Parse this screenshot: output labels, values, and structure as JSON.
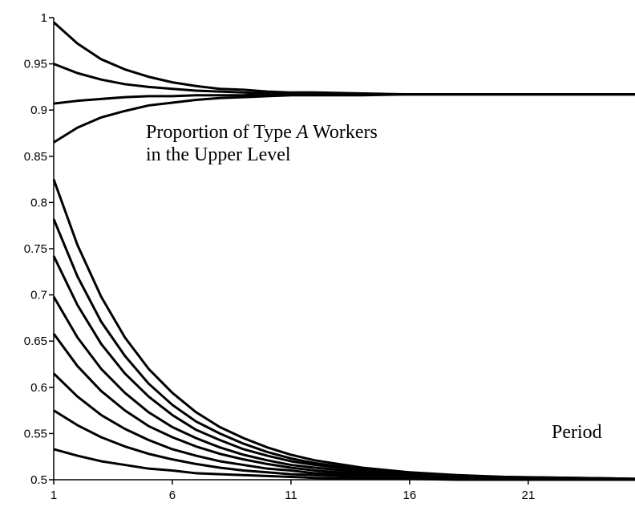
{
  "chart_data": {
    "type": "line",
    "annotation": [
      "Proportion of Type ",
      "A",
      " Workers",
      "in the Upper Level"
    ],
    "xlabel": "Period",
    "x": [
      1,
      2,
      3,
      4,
      5,
      6,
      7,
      8,
      9,
      10,
      11,
      12,
      14,
      16,
      18,
      20,
      25.5
    ],
    "xlim": [
      1,
      25.5
    ],
    "xticks": [
      1,
      6,
      11,
      16,
      21
    ],
    "ylim": [
      0.5,
      1
    ],
    "yticks": [
      0.5,
      0.55,
      0.6,
      0.65,
      0.7,
      0.75,
      0.8,
      0.85,
      0.9,
      0.95,
      1
    ],
    "series": [
      {
        "color": "#000000",
        "values": [
          0.995,
          0.972,
          0.955,
          0.944,
          0.936,
          0.93,
          0.926,
          0.923,
          0.922,
          0.92,
          0.919,
          0.919,
          0.918,
          0.917,
          0.917,
          0.917,
          0.917
        ]
      },
      {
        "color": "#000000",
        "values": [
          0.95,
          0.94,
          0.933,
          0.928,
          0.925,
          0.923,
          0.921,
          0.92,
          0.919,
          0.918,
          0.918,
          0.918,
          0.917,
          0.917,
          0.917,
          0.917,
          0.917
        ]
      },
      {
        "color": "#000000",
        "values": [
          0.907,
          0.91,
          0.912,
          0.914,
          0.915,
          0.915,
          0.916,
          0.916,
          0.916,
          0.917,
          0.917,
          0.917,
          0.917,
          0.917,
          0.917,
          0.917,
          0.917
        ]
      },
      {
        "color": "#000000",
        "values": [
          0.865,
          0.881,
          0.892,
          0.899,
          0.905,
          0.908,
          0.911,
          0.913,
          0.914,
          0.915,
          0.916,
          0.916,
          0.916,
          0.917,
          0.917,
          0.917,
          0.917
        ]
      },
      {
        "color": "#000000",
        "values": [
          0.825,
          0.754,
          0.698,
          0.654,
          0.62,
          0.594,
          0.573,
          0.557,
          0.545,
          0.535,
          0.527,
          0.521,
          0.513,
          0.508,
          0.505,
          0.503,
          0.501
        ]
      },
      {
        "color": "#000000",
        "values": [
          0.782,
          0.72,
          0.671,
          0.634,
          0.604,
          0.581,
          0.563,
          0.55,
          0.539,
          0.53,
          0.523,
          0.518,
          0.511,
          0.507,
          0.504,
          0.503,
          0.501
        ]
      },
      {
        "color": "#000000",
        "values": [
          0.742,
          0.689,
          0.647,
          0.615,
          0.59,
          0.57,
          0.554,
          0.543,
          0.533,
          0.526,
          0.52,
          0.516,
          0.51,
          0.506,
          0.504,
          0.502,
          0.5
        ]
      },
      {
        "color": "#000000",
        "values": [
          0.698,
          0.654,
          0.62,
          0.594,
          0.573,
          0.557,
          0.545,
          0.535,
          0.527,
          0.521,
          0.516,
          0.513,
          0.508,
          0.505,
          0.503,
          0.502,
          0.5
        ]
      },
      {
        "color": "#000000",
        "values": [
          0.658,
          0.623,
          0.596,
          0.575,
          0.558,
          0.546,
          0.536,
          0.528,
          0.522,
          0.517,
          0.513,
          0.51,
          0.506,
          0.504,
          0.502,
          0.501,
          0.5
        ]
      },
      {
        "color": "#000000",
        "values": [
          0.615,
          0.59,
          0.57,
          0.555,
          0.543,
          0.533,
          0.526,
          0.52,
          0.516,
          0.512,
          0.51,
          0.507,
          0.505,
          0.503,
          0.502,
          0.501,
          0.5
        ]
      },
      {
        "color": "#000000",
        "values": [
          0.575,
          0.559,
          0.546,
          0.536,
          0.528,
          0.522,
          0.517,
          0.513,
          0.51,
          0.508,
          0.506,
          0.505,
          0.503,
          0.502,
          0.501,
          0.501,
          0.5
        ]
      },
      {
        "color": "#000000",
        "values": [
          0.533,
          0.526,
          0.52,
          0.516,
          0.512,
          0.51,
          0.507,
          0.506,
          0.505,
          0.504,
          0.503,
          0.502,
          0.501,
          0.501,
          0.5,
          0.5,
          0.5
        ]
      }
    ]
  }
}
